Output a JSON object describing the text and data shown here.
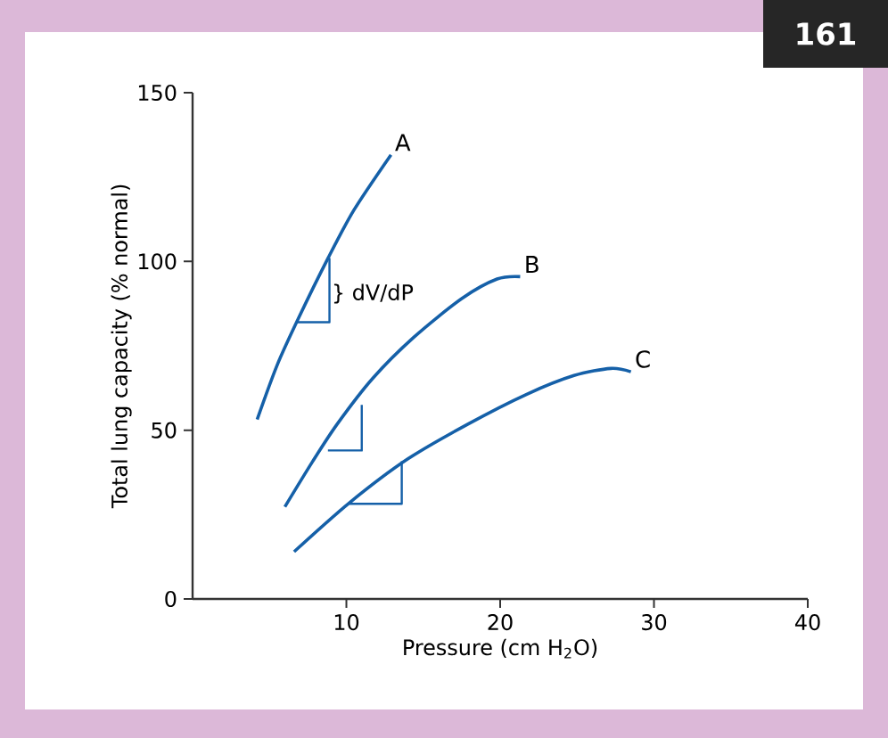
{
  "chart_data": {
    "type": "line",
    "xlabel": "Pressure (cm H$_{2}$O)",
    "ylabel": "Total lung capacity (% normal)",
    "xlim": [
      0,
      40
    ],
    "ylim": [
      0,
      150
    ],
    "xticks": [
      10,
      20,
      30,
      40
    ],
    "yticks": [
      0,
      50,
      100,
      150
    ],
    "grid": false,
    "legend": false,
    "marker": "none",
    "line_style": "solid",
    "series": [
      {
        "name": "A",
        "color": "#1560a8",
        "x": [
          4.2,
          5.5,
          6.9,
          8.8,
          10.5,
          12.9
        ],
        "values": [
          53.2,
          69.3,
          83.3,
          100.9,
          115.3,
          131.6
        ]
      },
      {
        "name": "B",
        "color": "#1560a8",
        "x": [
          6.0,
          7.8,
          9.4,
          11.7,
          14.4,
          17.5,
          19.8,
          21.3
        ],
        "values": [
          27.3,
          40.7,
          51.8,
          65.3,
          77.6,
          89.0,
          94.8,
          95.5
        ]
      },
      {
        "name": "C",
        "color": "#1560a8",
        "x": [
          6.6,
          10.2,
          14.0,
          17.9,
          21.7,
          24.8,
          27.2,
          28.5
        ],
        "values": [
          14.0,
          28.5,
          41.5,
          51.8,
          60.6,
          66.2,
          68.3,
          67.3
        ]
      },
      {
        "color": "#1560a8",
        "x": [
          6.8,
          8.9,
          8.9
        ],
        "values": [
          82,
          82,
          101
        ]
      },
      {
        "color": "#1560a8",
        "x": [
          8.8,
          11.0,
          11.0
        ],
        "values": [
          44,
          44,
          57.5
        ]
      },
      {
        "color": "#1560a8",
        "x": [
          10.2,
          13.6,
          13.6
        ],
        "values": [
          28.2,
          28.2,
          40.8
        ]
      }
    ],
    "annotations": [
      {
        "text": "} dV/dP",
        "x": 8.9,
        "y": 91.5
      },
      "161"
    ]
  }
}
